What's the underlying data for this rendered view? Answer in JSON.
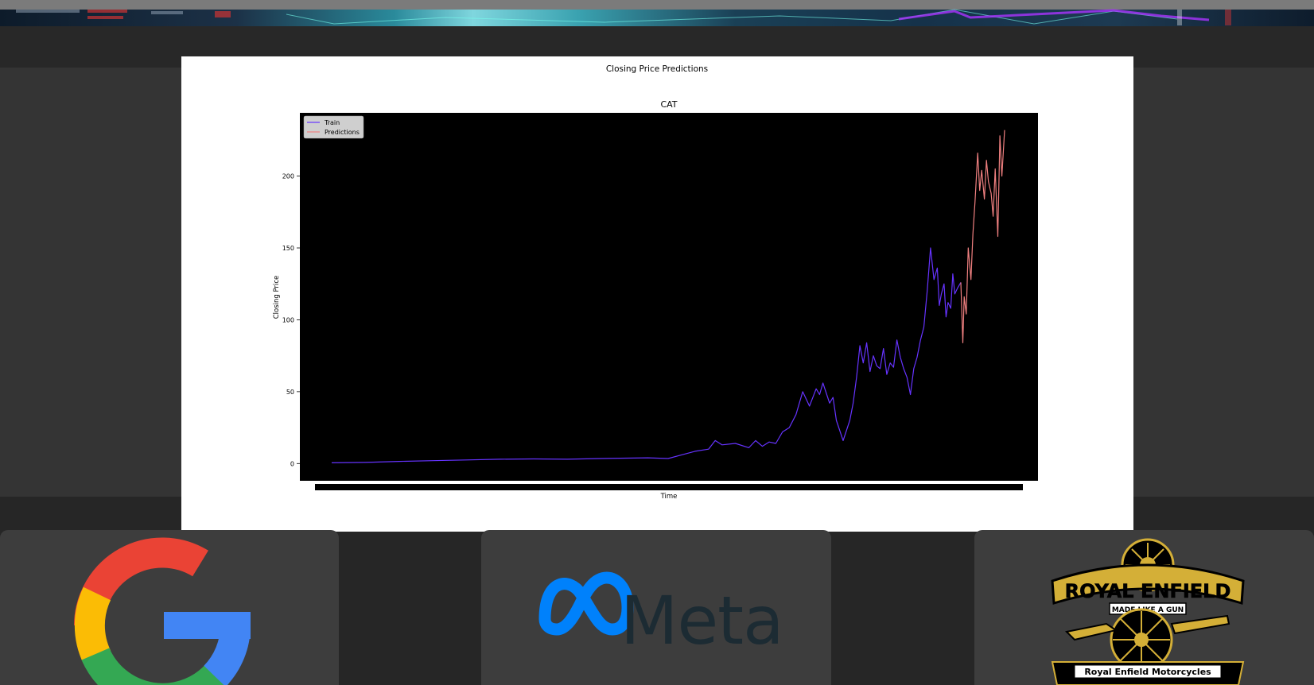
{
  "page": {
    "banner_image": "stock-market-background"
  },
  "chart_card": {
    "figure_title": "Closing Price Predictions"
  },
  "chart_data": {
    "type": "line",
    "title": "CAT",
    "xlabel": "Time",
    "ylabel": "Closing Price",
    "ylim": [
      -12,
      244
    ],
    "yticks": [
      0,
      50,
      100,
      150,
      200
    ],
    "xlim": [
      0,
      100
    ],
    "grid": false,
    "background": "#000000",
    "legend": {
      "placement": "top-left",
      "entries": [
        "Train",
        "Predictions"
      ]
    },
    "series": [
      {
        "name": "Train",
        "color": "#6633ff",
        "x": [
          0,
          5,
          10,
          15,
          20,
          25,
          30,
          35,
          40,
          45,
          47,
          50,
          52,
          54,
          56,
          57,
          58,
          60,
          62,
          63,
          64,
          65,
          66,
          67,
          68,
          69,
          70,
          71,
          72,
          72.5,
          73,
          74,
          74.5,
          75,
          76,
          77,
          77.5,
          78,
          78.5,
          79,
          79.5,
          80,
          80.5,
          81,
          81.5,
          82,
          82.5,
          83,
          83.5,
          84,
          84.5,
          85,
          85.5,
          86,
          86.5,
          87,
          87.5,
          88,
          88.5,
          89,
          89.5,
          90,
          90.3,
          90.6,
          91,
          91.3,
          91.6,
          92,
          92.3,
          92.6,
          93,
          93.5
        ],
        "y": [
          0.5,
          0.8,
          1.5,
          2.0,
          2.5,
          3.0,
          3.2,
          3.0,
          3.5,
          3.8,
          4.0,
          3.5,
          6.0,
          8.5,
          10,
          16,
          13,
          14,
          11,
          16,
          12,
          15,
          14,
          22,
          25,
          34,
          50,
          40,
          52,
          48,
          56,
          42,
          46,
          30,
          16,
          30,
          42,
          60,
          82,
          70,
          84,
          64,
          75,
          68,
          66,
          80,
          62,
          70,
          67,
          86,
          74,
          66,
          60,
          48,
          66,
          74,
          86,
          95,
          120,
          150,
          128,
          136,
          110,
          118,
          125,
          102,
          112,
          108,
          132,
          118,
          122,
          126
        ]
      },
      {
        "name": "Predictions",
        "color": "#f08080",
        "x": [
          93.5,
          93.8,
          94,
          94.3,
          94.6,
          95,
          95.3,
          95.6,
          96,
          96.3,
          96.6,
          97,
          97.3,
          97.6,
          98,
          98.3,
          98.6,
          99,
          99.3,
          99.6,
          100
        ],
        "y": [
          126,
          84,
          116,
          104,
          150,
          128,
          160,
          182,
          216,
          190,
          204,
          184,
          211,
          196,
          188,
          172,
          205,
          158,
          228,
          200,
          232
        ]
      }
    ]
  },
  "logos": [
    {
      "name": "Google",
      "icon": "google-g-logo",
      "colors": [
        "#ea4335",
        "#fbbc05",
        "#34a853",
        "#4285f4"
      ]
    },
    {
      "name": "Meta",
      "icon": "meta-infinity-logo",
      "wordmark": "Meta",
      "colors": [
        "#0081fb",
        "#1c2b33"
      ]
    },
    {
      "name": "Royal Enfield",
      "icon": "royal-enfield-logo",
      "brand_text": "ROYAL ENFIELD",
      "motto": "MADE LIKE A GUN",
      "footer_text": "Royal Enfield Motorcycles",
      "colors": [
        "#d4af37",
        "#000000"
      ]
    }
  ]
}
